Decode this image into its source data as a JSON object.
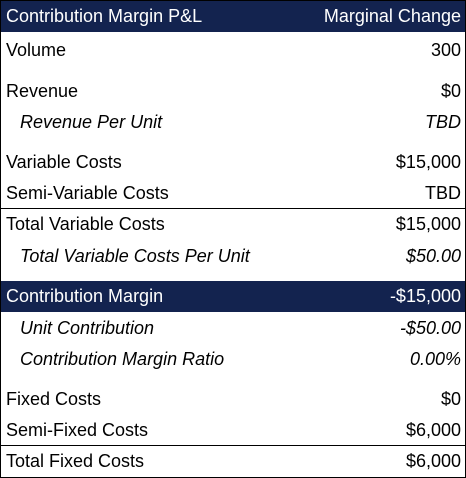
{
  "header": {
    "label": "Contribution Margin P&L",
    "value": "Marginal Change"
  },
  "rows": [
    {
      "label": "Volume",
      "value": "300"
    },
    {
      "label": "Revenue",
      "value": "$0"
    },
    {
      "label": "Revenue Per Unit",
      "value": "TBD"
    },
    {
      "label": "Variable Costs",
      "value": "$15,000"
    },
    {
      "label": "Semi-Variable Costs",
      "value": "TBD"
    },
    {
      "label": "Total Variable Costs",
      "value": "$15,000"
    },
    {
      "label": "Total Variable Costs Per Unit",
      "value": "$50.00"
    },
    {
      "label": "Contribution Margin",
      "value": "-$15,000"
    },
    {
      "label": "Unit Contribution",
      "value": "-$50.00"
    },
    {
      "label": "Contribution Margin Ratio",
      "value": "0.00%"
    },
    {
      "label": "Fixed Costs",
      "value": "$0"
    },
    {
      "label": "Semi-Fixed Costs",
      "value": "$6,000"
    },
    {
      "label": "Total Fixed Costs",
      "value": "$6,000"
    }
  ]
}
